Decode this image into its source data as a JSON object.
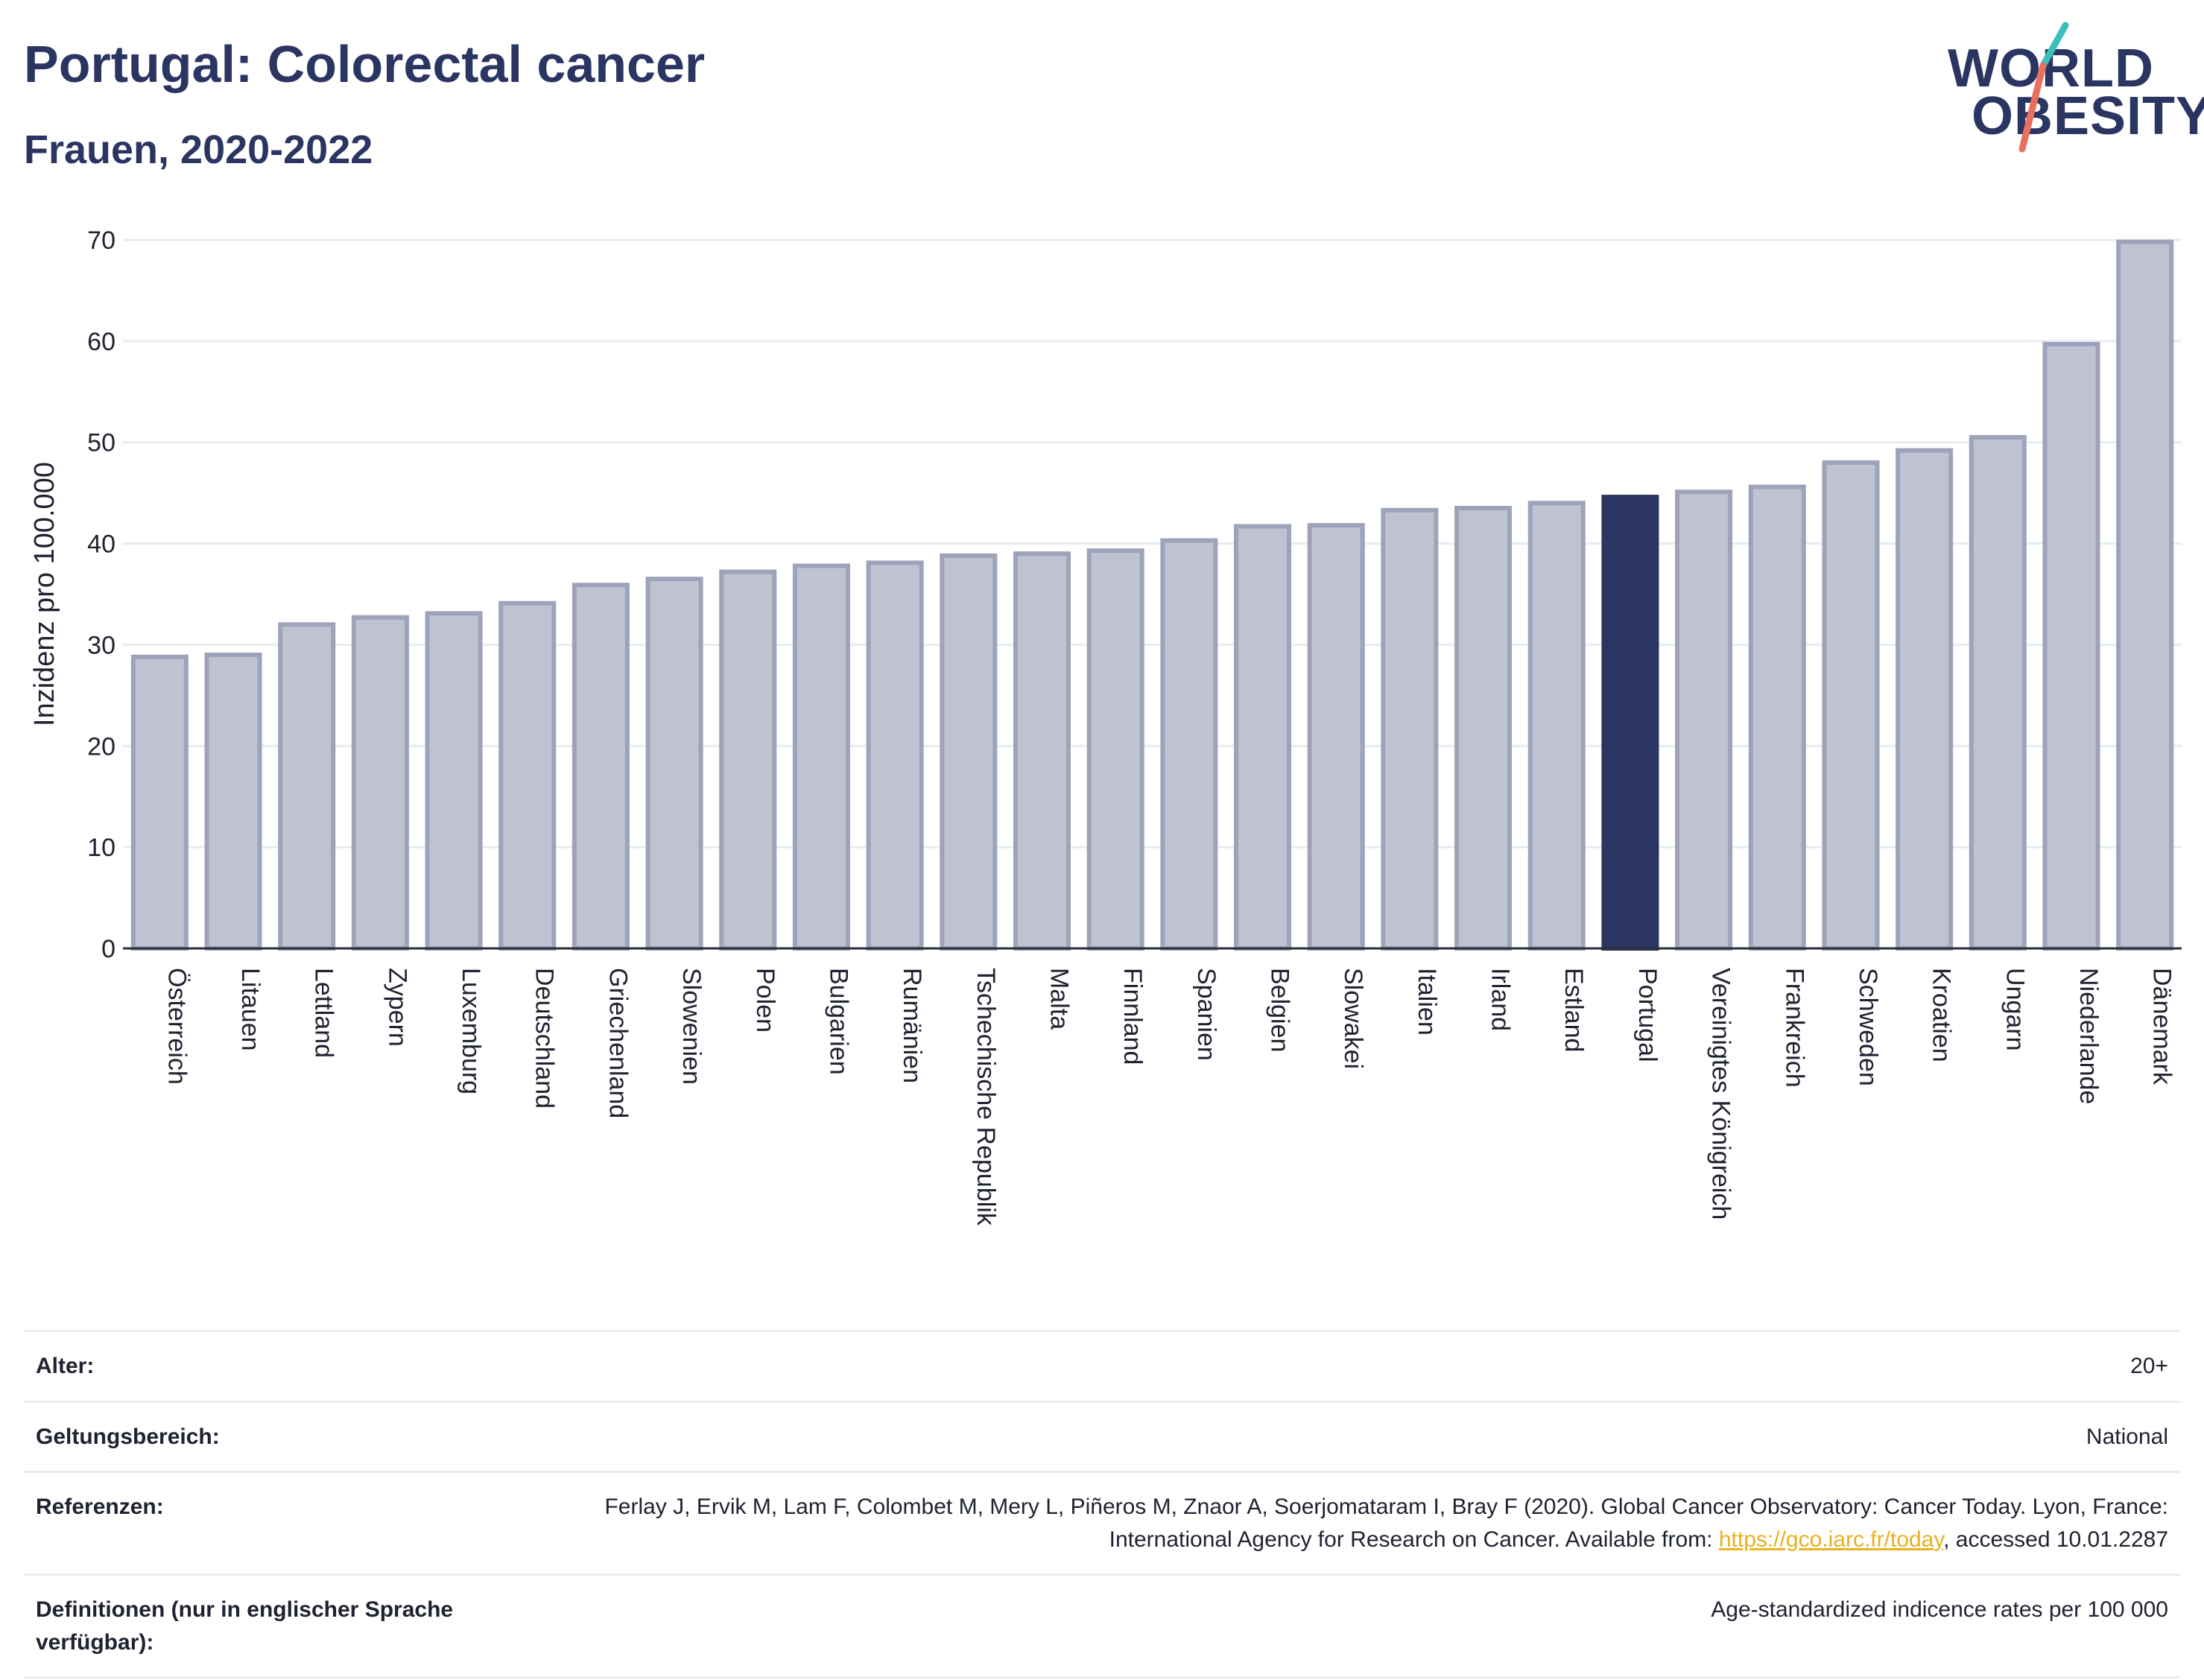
{
  "header": {
    "title": "Portugal: Colorectal cancer",
    "subtitle": "Frauen, 2020-2022"
  },
  "logo": {
    "line1": "WORLD",
    "line2": "OBESITY",
    "slash_colors": [
      "#3bbfbc",
      "#e8705f"
    ]
  },
  "colors": {
    "bar": "#bfc2d0",
    "bar_stroke": "#9ea3ba",
    "highlight": "#2b3561",
    "grid": "#e9ebf1",
    "title": "#2b3561",
    "link": "#e8b120"
  },
  "chart_data": {
    "type": "bar",
    "title": "Portugal: Colorectal cancer",
    "subtitle": "Frauen, 2020-2022",
    "xlabel": "",
    "ylabel": "Inzidenz pro 100.000",
    "ylim": [
      0,
      70
    ],
    "yticks": [
      0,
      10,
      20,
      30,
      40,
      50,
      60,
      70
    ],
    "grid": true,
    "highlight": "Portugal",
    "categories": [
      "Österreich",
      "Litauen",
      "Lettland",
      "Zypern",
      "Luxemburg",
      "Deutschland",
      "Griechenland",
      "Slowenien",
      "Polen",
      "Bulgarien",
      "Rumänien",
      "Tschechische Republik",
      "Malta",
      "Finnland",
      "Spanien",
      "Belgien",
      "Slowakei",
      "Italien",
      "Irland",
      "Estland",
      "Portugal",
      "Vereinigtes Königreich",
      "Frankreich",
      "Schweden",
      "Kroatien",
      "Ungarn",
      "Niederlande",
      "Dänemark"
    ],
    "values": [
      28.8,
      29.0,
      32.0,
      32.7,
      33.1,
      34.1,
      35.9,
      36.5,
      37.2,
      37.8,
      38.1,
      38.8,
      39.0,
      39.3,
      40.3,
      41.7,
      41.8,
      43.3,
      43.5,
      44.0,
      44.6,
      45.1,
      45.6,
      48.0,
      49.2,
      50.5,
      59.7,
      69.8
    ]
  },
  "meta": {
    "alter_label": "Alter:",
    "alter_value": "20+",
    "scope_label": "Geltungsbereich:",
    "scope_value": "National",
    "refs_label": "Referenzen:",
    "refs_text_a": "Ferlay J, Ervik M, Lam F, Colombet M, Mery L, Piñeros M, Znaor A, Soerjomataram I, Bray F (2020). Global Cancer Observatory: Cancer Today. Lyon, France: International Agency for Research on Cancer. Available from: ",
    "refs_link": "https://gco.iarc.fr/today",
    "refs_text_b": ", accessed 10.01.2287",
    "def_label": "Definitionen (nur in englischer Sprache verfügbar):",
    "def_value": "Age-standardized indicence rates per 100 000"
  }
}
